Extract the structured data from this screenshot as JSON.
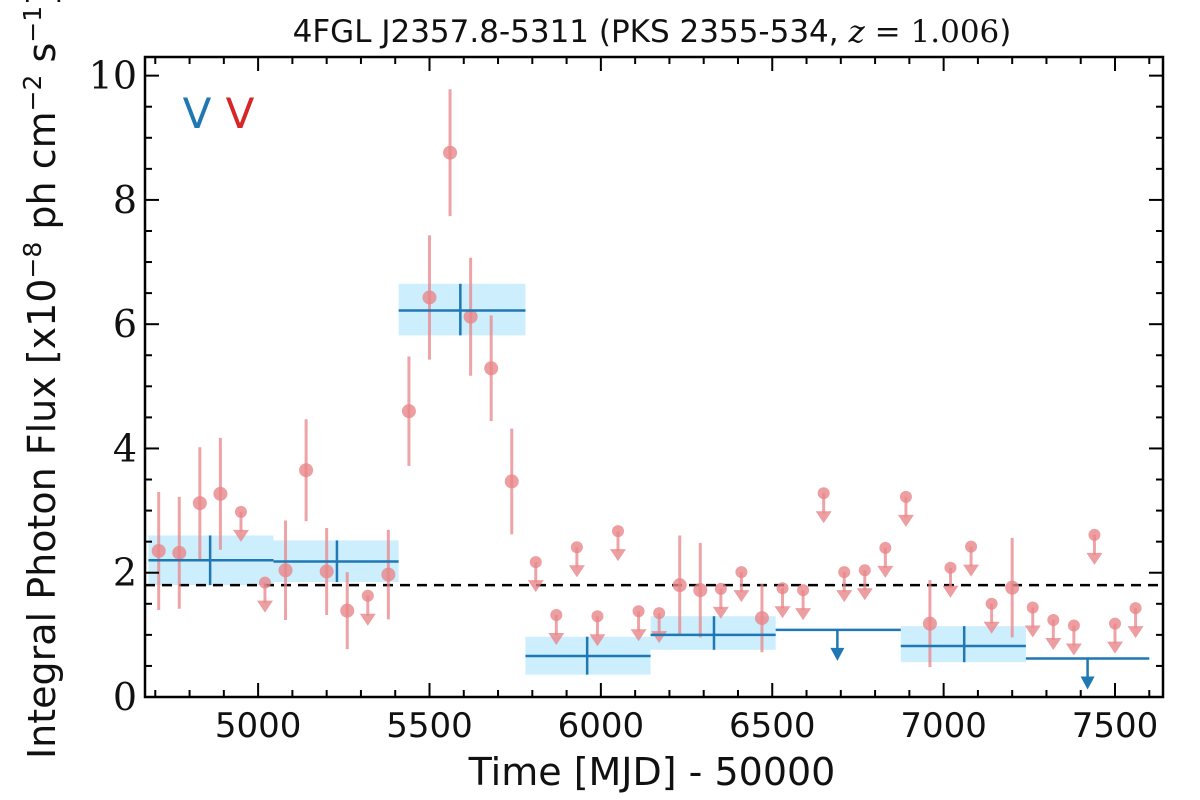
{
  "chart_data": {
    "type": "scatter",
    "title": {
      "prefix": "4FGL J2357.8-5311 (PKS 2355-534, ",
      "z_symbol": "z",
      "equals": " = ",
      "z_value": "1.006",
      "suffix": ")"
    },
    "xlabel": "Time [MJD] - 50000",
    "ylabel": {
      "main": "Integral Photon Flux [x10",
      "exp1": "−8",
      "mid": " ph cm",
      "exp2": "−2",
      "mid2": " s",
      "exp3": "−1",
      "end": "]"
    },
    "xlim": [
      4670,
      7640
    ],
    "ylim": [
      0,
      10.3
    ],
    "x_ticks": [
      5000,
      5500,
      6000,
      6500,
      7000,
      7500
    ],
    "x_tick_labels": [
      "5000",
      "5500",
      "6000",
      "6500",
      "7000",
      "7500"
    ],
    "y_ticks": [
      0,
      2,
      4,
      6,
      8,
      10
    ],
    "y_tick_labels": [
      "0",
      "2",
      "4",
      "6",
      "8",
      "10"
    ],
    "reference_line": {
      "y": 1.8,
      "style": "dashed",
      "color": "#000000"
    },
    "legend": {
      "placement": "top-left",
      "entries": [
        {
          "label": "V",
          "color": "#1f77b4"
        },
        {
          "label": "V",
          "color": "#d62728"
        }
      ]
    },
    "series": [
      {
        "name": "",
        "color": "#e8868a",
        "kind": "fine-bin measurements",
        "points": [
          {
            "x": 4710,
            "y": 2.35,
            "yerr": 0.95
          },
          {
            "x": 4770,
            "y": 2.32,
            "yerr": 0.9
          },
          {
            "x": 4830,
            "y": 3.12,
            "yerr": 0.9
          },
          {
            "x": 4890,
            "y": 3.27,
            "yerr": 0.9
          },
          {
            "x": 5080,
            "y": 2.04,
            "yerr": 0.8
          },
          {
            "x": 5140,
            "y": 3.65,
            "yerr": 0.82
          },
          {
            "x": 5200,
            "y": 2.02,
            "yerr": 0.7
          },
          {
            "x": 5260,
            "y": 1.39,
            "yerr": 0.62
          },
          {
            "x": 5380,
            "y": 1.97,
            "yerr": 0.72
          },
          {
            "x": 5440,
            "y": 4.6,
            "yerr": 0.88
          },
          {
            "x": 5500,
            "y": 6.43,
            "yerr": 1.0
          },
          {
            "x": 5560,
            "y": 8.76,
            "yerr": 1.02
          },
          {
            "x": 5620,
            "y": 6.12,
            "yerr": 0.95
          },
          {
            "x": 5680,
            "y": 5.29,
            "yerr": 0.85
          },
          {
            "x": 5740,
            "y": 3.47,
            "yerr": 0.85
          },
          {
            "x": 6230,
            "y": 1.8,
            "yerr": 0.8
          },
          {
            "x": 6290,
            "y": 1.72,
            "yerr": 0.76
          },
          {
            "x": 6470,
            "y": 1.27,
            "yerr": 0.55
          },
          {
            "x": 6960,
            "y": 1.18,
            "yerr": 0.7
          },
          {
            "x": 7200,
            "y": 1.76,
            "yerr": 0.8
          }
        ]
      },
      {
        "name": "",
        "color": "#e8868a",
        "kind": "fine-bin upper limits",
        "points": [
          {
            "x": 4950,
            "y": 2.98
          },
          {
            "x": 5020,
            "y": 1.84
          },
          {
            "x": 5320,
            "y": 1.63
          },
          {
            "x": 5810,
            "y": 2.17
          },
          {
            "x": 5870,
            "y": 1.32
          },
          {
            "x": 5930,
            "y": 2.41
          },
          {
            "x": 5990,
            "y": 1.3
          },
          {
            "x": 6050,
            "y": 2.67
          },
          {
            "x": 6110,
            "y": 1.38
          },
          {
            "x": 6170,
            "y": 1.35
          },
          {
            "x": 6350,
            "y": 1.74
          },
          {
            "x": 6410,
            "y": 2.01
          },
          {
            "x": 6530,
            "y": 1.75
          },
          {
            "x": 6590,
            "y": 1.72
          },
          {
            "x": 6650,
            "y": 3.28
          },
          {
            "x": 6710,
            "y": 2.01
          },
          {
            "x": 6770,
            "y": 2.04
          },
          {
            "x": 6830,
            "y": 2.4
          },
          {
            "x": 6890,
            "y": 3.22
          },
          {
            "x": 7020,
            "y": 2.08
          },
          {
            "x": 7080,
            "y": 2.42
          },
          {
            "x": 7140,
            "y": 1.5
          },
          {
            "x": 7260,
            "y": 1.44
          },
          {
            "x": 7320,
            "y": 1.24
          },
          {
            "x": 7380,
            "y": 1.15
          },
          {
            "x": 7440,
            "y": 2.61
          },
          {
            "x": 7500,
            "y": 1.18
          },
          {
            "x": 7560,
            "y": 1.43
          }
        ]
      },
      {
        "name": "",
        "color": "#1f77b4",
        "band_color": "#cdeefc",
        "kind": "long-bin measurements",
        "bins": [
          {
            "x0": 4680,
            "x1": 5045,
            "xc": 4860,
            "y": 2.2,
            "ylo": 1.8,
            "yhi": 2.6
          },
          {
            "x0": 5045,
            "x1": 5410,
            "xc": 5230,
            "y": 2.18,
            "ylo": 1.85,
            "yhi": 2.52
          },
          {
            "x0": 5410,
            "x1": 5780,
            "xc": 5590,
            "y": 6.22,
            "ylo": 5.82,
            "yhi": 6.65
          },
          {
            "x0": 5780,
            "x1": 6145,
            "xc": 5960,
            "y": 0.66,
            "ylo": 0.36,
            "yhi": 0.97
          },
          {
            "x0": 6145,
            "x1": 6510,
            "xc": 6330,
            "y": 1.0,
            "ylo": 0.76,
            "yhi": 1.3
          },
          {
            "x0": 6875,
            "x1": 7240,
            "xc": 7060,
            "y": 0.82,
            "ylo": 0.56,
            "yhi": 1.14
          }
        ]
      },
      {
        "name": "",
        "color": "#1f77b4",
        "kind": "long-bin upper limits",
        "bins": [
          {
            "x0": 6510,
            "x1": 6875,
            "xc": 6690,
            "y": 1.08
          },
          {
            "x0": 7240,
            "x1": 7600,
            "xc": 7420,
            "y": 0.62
          }
        ]
      }
    ]
  }
}
